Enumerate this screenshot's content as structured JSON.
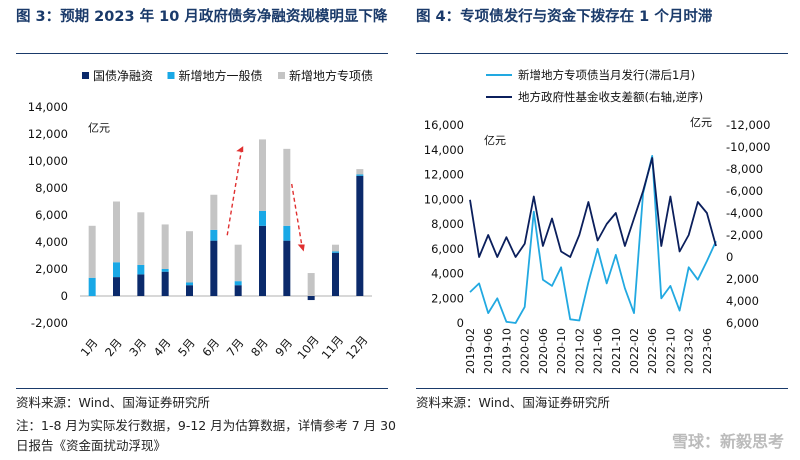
{
  "left": {
    "title": "图 3：预期 2023 年 10 月政府债务净融资规模明显下降",
    "source": "资料来源：Wind、国海证券研究所",
    "note": "注：1-8 月为实际发行数据，9-12 月为估算数据，详情参考 7 月 30 日报告《资金面扰动浮现》"
  },
  "right": {
    "title": "图 4：专项债发行与资金下拨存在 1 个月时滞",
    "source": "资料来源：Wind、国海证券研究所"
  },
  "watermark": "雪球：新毅思考",
  "chart_data": [
    {
      "type": "bar",
      "stacked": true,
      "unit_label": "亿元",
      "categories": [
        "1月",
        "2月",
        "3月",
        "4月",
        "5月",
        "6月",
        "7月",
        "8月",
        "9月",
        "10月",
        "11月",
        "12月"
      ],
      "series": [
        {
          "name": "国债净融资",
          "color": "#0b2a6b",
          "values": [
            0,
            1400,
            1600,
            1800,
            800,
            4100,
            800,
            5200,
            4100,
            -300,
            3200,
            8900
          ]
        },
        {
          "name": "新增地方一般债",
          "color": "#19a8e6",
          "values": [
            1350,
            1100,
            700,
            200,
            200,
            800,
            300,
            1100,
            1100,
            0,
            100,
            100
          ]
        },
        {
          "name": "新增地方专项债",
          "color": "#c4c4c4",
          "values": [
            3850,
            4500,
            3900,
            3300,
            3800,
            2600,
            2700,
            5300,
            5700,
            1700,
            500,
            400
          ]
        }
      ],
      "ylim": [
        -2000,
        14000
      ],
      "yticks": [
        "14,000",
        "12,000",
        "10,000",
        "8,000",
        "6,000",
        "4,000",
        "2,000",
        "0",
        "-2,000"
      ],
      "legend": "top"
    },
    {
      "type": "line",
      "left_unit": "亿元",
      "right_unit": "亿元",
      "x": [
        "2019-02",
        "2019-04",
        "2019-06",
        "2019-08",
        "2019-10",
        "2019-12",
        "2020-02",
        "2020-04",
        "2020-06",
        "2020-08",
        "2020-10",
        "2020-12",
        "2021-02",
        "2021-04",
        "2021-06",
        "2021-08",
        "2021-10",
        "2021-12",
        "2022-02",
        "2022-04",
        "2022-06",
        "2022-08",
        "2022-10",
        "2022-12",
        "2023-02",
        "2023-04",
        "2023-06",
        "2023-08"
      ],
      "x_tick_labels": [
        "2019-02",
        "2019-06",
        "2019-10",
        "2020-02",
        "2020-06",
        "2020-10",
        "2021-02",
        "2021-06",
        "2021-10",
        "2022-02",
        "2022-06",
        "2022-10",
        "2023-02",
        "2023-06"
      ],
      "left_ylim": [
        0,
        16000
      ],
      "left_yticks": [
        "16,000",
        "14,000",
        "12,000",
        "10,000",
        "8,000",
        "6,000",
        "4,000",
        "2,000",
        "0"
      ],
      "right_ylim": [
        6000,
        -12000
      ],
      "right_yticks": [
        "-12,000",
        "-10,000",
        "-8,000",
        "-6,000",
        "-4,000",
        "-2,000",
        "0",
        "2,000",
        "4,000",
        "6,000"
      ],
      "right_axis_note": "右轴,逆序",
      "series": [
        {
          "name": "新增地方专项债当月发行(滞后1月)",
          "axis": "left",
          "color": "#22a9e1",
          "values": [
            2500,
            3200,
            800,
            2000,
            100,
            0,
            1300,
            9000,
            3500,
            3000,
            4500,
            300,
            200,
            3300,
            6000,
            3200,
            5500,
            2800,
            800,
            10500,
            13500,
            2000,
            3000,
            1000,
            4500,
            3500,
            5000,
            6600
          ]
        },
        {
          "name": "地方政府性基金收支差额(右轴,逆序)",
          "axis": "right",
          "color": "#0b1f5c",
          "values": [
            -5200,
            0,
            -2000,
            0,
            -1800,
            0,
            -1200,
            -5500,
            -1000,
            -3500,
            -500,
            0,
            -2000,
            -5000,
            -1500,
            -3000,
            -4000,
            -1000,
            -3500,
            -6000,
            -9000,
            -1000,
            -5500,
            -500,
            -2000,
            -5000,
            -4000,
            -1000
          ]
        }
      ],
      "legend": "top"
    }
  ]
}
